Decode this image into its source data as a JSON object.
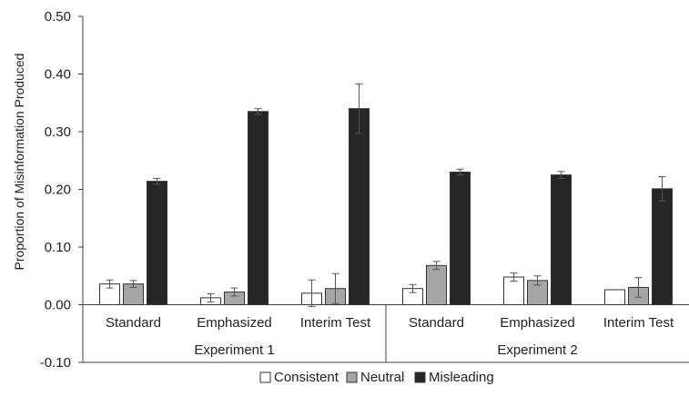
{
  "chart_data": {
    "type": "bar",
    "ylabel": "Proportion of Misinformation Produced",
    "xlabel": "",
    "title": "",
    "ylim": [
      -0.1,
      0.5
    ],
    "yticks": [
      "-0.10",
      "0.00",
      "0.10",
      "0.20",
      "0.30",
      "0.40",
      "0.50"
    ],
    "grid": false,
    "legend_position": "bottom",
    "groups": [
      {
        "label": "Experiment 1",
        "categories": [
          "Standard",
          "Emphasized",
          "Interim Test"
        ]
      },
      {
        "label": "Experiment 2",
        "categories": [
          "Standard",
          "Emphasized",
          "Interim Test"
        ]
      }
    ],
    "categories": [
      "Standard",
      "Emphasized",
      "Interim Test",
      "Standard",
      "Emphasized",
      "Interim Test"
    ],
    "series": [
      {
        "name": "Consistent",
        "color": "#ffffff",
        "values": [
          0.036,
          0.012,
          0.02,
          0.028,
          0.048,
          0.026
        ],
        "errors": [
          0.007,
          0.007,
          0.023,
          0.007,
          0.007,
          0.0
        ]
      },
      {
        "name": "Neutral",
        "color": "#a6a6a6",
        "values": [
          0.036,
          0.022,
          0.028,
          0.068,
          0.042,
          0.03
        ],
        "errors": [
          0.006,
          0.007,
          0.026,
          0.007,
          0.008,
          0.017
        ]
      },
      {
        "name": "Misleading",
        "color": "#262626",
        "values": [
          0.214,
          0.335,
          0.34,
          0.23,
          0.225,
          0.201
        ],
        "errors": [
          0.005,
          0.005,
          0.043,
          0.005,
          0.006,
          0.021
        ]
      }
    ]
  }
}
